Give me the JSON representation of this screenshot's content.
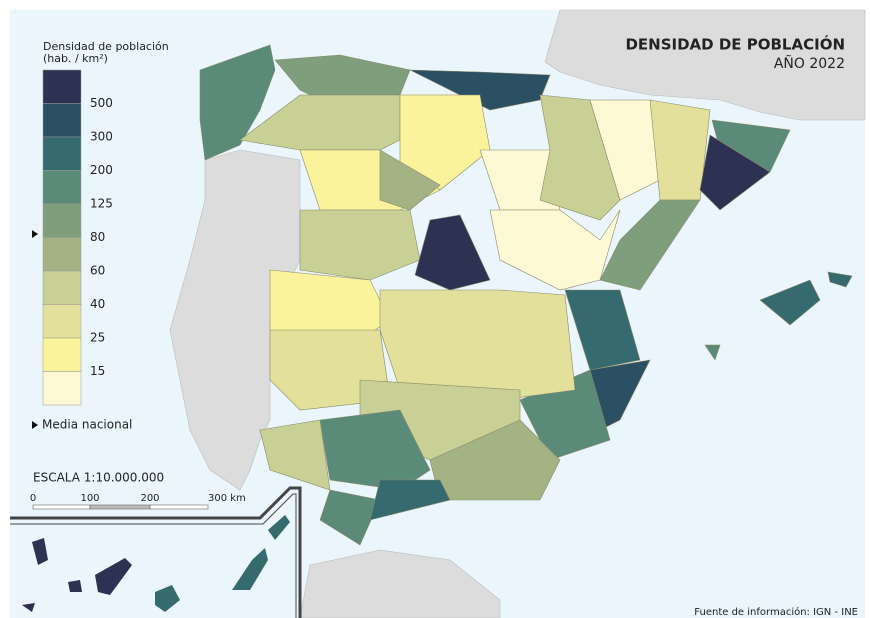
{
  "title": "DENSIDAD DE POBLACIÓN",
  "subtitle": "AÑO 2022",
  "legend": {
    "title": "Densidad de población",
    "unit": "(hab. / km²)",
    "colors": [
      "#2d3152",
      "#2b4f63",
      "#356b6e",
      "#5a8a78",
      "#7f9e7c",
      "#a4b383",
      "#c8d096",
      "#e2e09a",
      "#fbf39c",
      "#fdf9d4"
    ],
    "labels": [
      "500",
      "300",
      "200",
      "125",
      "80",
      "60",
      "40",
      "25",
      "15"
    ],
    "mean_label": "Media nacional"
  },
  "scale": {
    "title": "ESCALA 1:10.000.000",
    "ticks": [
      "0",
      "100",
      "200",
      "300 km"
    ]
  },
  "source": "Fuente de información: IGN - INE"
}
